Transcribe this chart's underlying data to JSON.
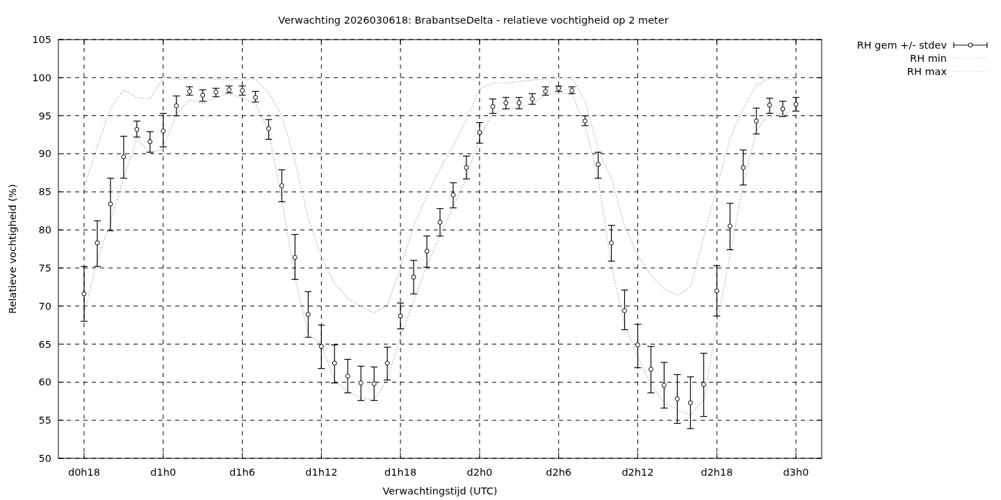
{
  "chart_data": {
    "type": "scatter",
    "title": "Verwachting 2026030618: BrabantseDelta - relatieve vochtigheid op 2 meter",
    "xlabel": "Verwachtingstijd (UTC)",
    "ylabel": "Relatieve vochtigheid (%)",
    "categories": [
      "d0h18",
      null,
      null,
      null,
      null,
      null,
      "d1h0",
      null,
      null,
      null,
      null,
      null,
      "d1h6",
      null,
      null,
      null,
      null,
      null,
      "d1h12",
      null,
      null,
      null,
      null,
      null,
      "d1h18",
      null,
      null,
      null,
      null,
      null,
      "d2h0",
      null,
      null,
      null,
      null,
      null,
      "d2h6",
      null,
      null,
      null,
      null,
      null,
      "d2h12",
      null,
      null,
      null,
      null,
      null,
      "d2h18",
      null,
      null,
      null,
      null,
      null,
      "d3h0"
    ],
    "ylim": [
      50,
      105
    ],
    "yticks": [
      50,
      55,
      60,
      65,
      70,
      75,
      80,
      85,
      90,
      95,
      100,
      105
    ],
    "grid": true,
    "legend": "top right",
    "series": [
      {
        "name": "RH gem +/- stdev",
        "marker": "circle",
        "color": "#000000",
        "values": [
          71.6,
          78.3,
          83.4,
          89.6,
          93.2,
          91.6,
          93.0,
          96.3,
          98.2,
          97.7,
          98.1,
          98.4,
          98.3,
          97.4,
          93.3,
          85.8,
          76.4,
          68.9,
          64.7,
          62.5,
          60.8,
          59.9,
          59.8,
          62.5,
          68.7,
          73.8,
          77.2,
          81.0,
          84.6,
          88.2,
          92.8,
          96.2,
          96.7,
          96.7,
          97.2,
          98.2,
          98.6,
          98.3,
          94.3,
          88.6,
          78.3,
          69.4,
          64.9,
          61.7,
          59.6,
          57.8,
          57.3,
          59.7,
          72.0,
          80.5,
          88.2,
          94.3,
          96.4,
          95.9,
          96.5
        ],
        "errors": [
          [
            68.0,
            75.2
          ],
          [
            75.2,
            81.2
          ],
          [
            79.9,
            86.8
          ],
          [
            86.8,
            92.3
          ],
          [
            92.2,
            94.3
          ],
          [
            90.2,
            92.9
          ],
          [
            90.9,
            95.3
          ],
          [
            95.0,
            97.6
          ],
          [
            97.7,
            98.8
          ],
          [
            96.9,
            98.4
          ],
          [
            97.5,
            98.6
          ],
          [
            98.0,
            98.9
          ],
          [
            97.7,
            98.9
          ],
          [
            96.8,
            98.2
          ],
          [
            91.9,
            94.5
          ],
          [
            83.7,
            87.9
          ],
          [
            73.5,
            79.4
          ],
          [
            65.9,
            71.9
          ],
          [
            61.8,
            67.5
          ],
          [
            59.9,
            64.9
          ],
          [
            58.6,
            63.0
          ],
          [
            57.6,
            62.1
          ],
          [
            57.6,
            62.0
          ],
          [
            60.3,
            64.6
          ],
          [
            67.0,
            70.4
          ],
          [
            71.6,
            76.0
          ],
          [
            75.1,
            79.2
          ],
          [
            79.2,
            82.8
          ],
          [
            82.9,
            86.2
          ],
          [
            86.7,
            89.7
          ],
          [
            91.4,
            94.1
          ],
          [
            95.3,
            97.2
          ],
          [
            95.9,
            97.4
          ],
          [
            95.9,
            97.4
          ],
          [
            96.5,
            97.9
          ],
          [
            97.7,
            98.8
          ],
          [
            98.2,
            98.9
          ],
          [
            97.9,
            98.8
          ],
          [
            93.7,
            95.0
          ],
          [
            86.8,
            90.2
          ],
          [
            75.9,
            80.6
          ],
          [
            66.9,
            72.1
          ],
          [
            61.9,
            67.6
          ],
          [
            58.6,
            64.7
          ],
          [
            56.6,
            62.6
          ],
          [
            54.6,
            61.0
          ],
          [
            53.9,
            60.7
          ],
          [
            55.5,
            63.8
          ],
          [
            68.7,
            75.3
          ],
          [
            77.4,
            83.5
          ],
          [
            85.9,
            90.5
          ],
          [
            92.6,
            96.0
          ],
          [
            95.3,
            97.3
          ],
          [
            94.9,
            96.9
          ],
          [
            95.6,
            97.4
          ]
        ]
      },
      {
        "name": "RH min",
        "type": "line",
        "line_style": "dotted",
        "color": "#b4b4b4",
        "values": [
          68.9,
          76.0,
          81.0,
          86.8,
          92.0,
          90.1,
          90.7,
          95.2,
          97.1,
          96.6,
          97.4,
          97.9,
          97.3,
          96.6,
          92.9,
          84.0,
          73.7,
          66.4,
          64.9,
          60.3,
          58.8,
          57.9,
          57.7,
          60.3,
          65.8,
          70.7,
          75.3,
          79.2,
          83.1,
          86.8,
          92.2,
          95.2,
          95.9,
          96.1,
          96.6,
          97.7,
          98.0,
          97.9,
          93.8,
          86.8,
          75.3,
          67.6,
          63.4,
          59.7,
          57.3,
          56.4,
          55.7,
          57.6,
          67.6,
          76.7,
          86.0,
          93.0,
          95.5,
          95.2,
          95.8
        ]
      },
      {
        "name": "RH max",
        "type": "line",
        "line_style": "dotted",
        "color": "#b4b4b4",
        "values": [
          85.6,
          91.0,
          96.0,
          98.4,
          97.4,
          97.2,
          100.0,
          99.8,
          99.8,
          99.9,
          99.8,
          99.7,
          99.8,
          99.8,
          98.0,
          95.0,
          89.0,
          81.5,
          76.5,
          73.0,
          71.0,
          70.0,
          69.1,
          70.1,
          75.0,
          80.5,
          84.5,
          88.0,
          91.0,
          94.5,
          98.5,
          99.3,
          99.3,
          99.5,
          99.7,
          99.8,
          100.0,
          100.0,
          97.0,
          90.5,
          86.8,
          80.5,
          76.7,
          74.0,
          72.3,
          71.4,
          72.5,
          79.0,
          85.5,
          92.0,
          96.0,
          99.0,
          99.9,
          99.8,
          99.7
        ]
      }
    ]
  }
}
